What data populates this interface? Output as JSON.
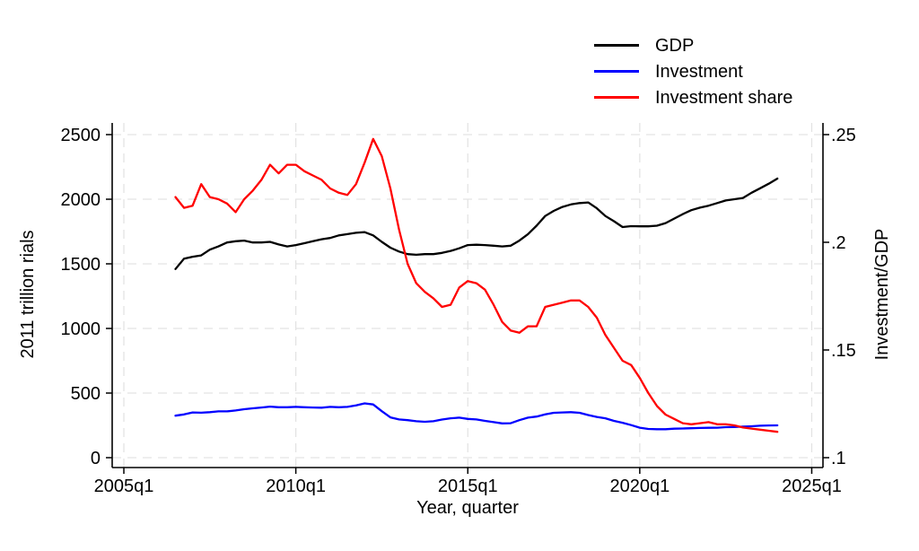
{
  "chart_data": {
    "type": "line",
    "title": "",
    "xlabel": "Year, quarter",
    "y_left": {
      "label": "2011 trillion rials",
      "ticks": [
        0,
        500,
        1000,
        1500,
        2000,
        2500
      ],
      "range": [
        0,
        2500
      ]
    },
    "y_right": {
      "label": "Investment/GDP",
      "ticks": [
        ".1",
        ".15",
        ".2",
        ".25"
      ],
      "tick_values": [
        0.1,
        0.15,
        0.2,
        0.25
      ],
      "range": [
        0.1,
        0.25
      ]
    },
    "x_axis": {
      "label": "Year, quarter",
      "ticks": [
        {
          "label": "2005q1",
          "q": 0
        },
        {
          "label": "2010q1",
          "q": 20
        },
        {
          "label": "2015q1",
          "q": 40
        },
        {
          "label": "2020q1",
          "q": 60
        },
        {
          "label": "2025q1",
          "q": 80
        }
      ]
    },
    "x_start_q": 6,
    "x": [
      "2006q3",
      "2006q4",
      "2007q1",
      "2007q2",
      "2007q3",
      "2007q4",
      "2008q1",
      "2008q2",
      "2008q3",
      "2008q4",
      "2009q1",
      "2009q2",
      "2009q3",
      "2009q4",
      "2010q1",
      "2010q2",
      "2010q3",
      "2010q4",
      "2011q1",
      "2011q2",
      "2011q3",
      "2011q4",
      "2012q1",
      "2012q2",
      "2012q3",
      "2012q4",
      "2013q1",
      "2013q2",
      "2013q3",
      "2013q4",
      "2014q1",
      "2014q2",
      "2014q3",
      "2014q4",
      "2015q1",
      "2015q2",
      "2015q3",
      "2015q4",
      "2016q1",
      "2016q2",
      "2016q3",
      "2016q4",
      "2017q1",
      "2017q2",
      "2017q3",
      "2017q4",
      "2018q1",
      "2018q2",
      "2018q3",
      "2018q4",
      "2019q1",
      "2019q2",
      "2019q3",
      "2019q4",
      "2020q1",
      "2020q2",
      "2020q3",
      "2020q4",
      "2021q1",
      "2021q2",
      "2021q3",
      "2021q4",
      "2022q1",
      "2022q2",
      "2022q3",
      "2022q4",
      "2023q1",
      "2023q2",
      "2023q3",
      "2023q4",
      "2024q1"
    ],
    "series": [
      {
        "name": "GDP",
        "color": "#000000",
        "axis": "left",
        "values": [
          1460,
          1540,
          1555,
          1565,
          1610,
          1635,
          1665,
          1675,
          1680,
          1665,
          1665,
          1670,
          1650,
          1635,
          1645,
          1660,
          1675,
          1690,
          1700,
          1720,
          1730,
          1740,
          1745,
          1720,
          1670,
          1625,
          1595,
          1575,
          1570,
          1575,
          1575,
          1585,
          1600,
          1620,
          1645,
          1648,
          1645,
          1640,
          1635,
          1640,
          1680,
          1730,
          1795,
          1870,
          1910,
          1940,
          1960,
          1970,
          1975,
          1930,
          1870,
          1830,
          1785,
          1792,
          1790,
          1790,
          1795,
          1815,
          1850,
          1885,
          1915,
          1935,
          1950,
          1970,
          1990,
          2000,
          2010,
          2050,
          2085,
          2120,
          2160
        ]
      },
      {
        "name": "Investment",
        "color": "#0000ff",
        "axis": "left",
        "values": [
          325,
          335,
          350,
          348,
          352,
          358,
          358,
          365,
          375,
          382,
          388,
          395,
          390,
          390,
          393,
          390,
          388,
          387,
          393,
          390,
          393,
          405,
          420,
          412,
          360,
          312,
          296,
          290,
          282,
          278,
          282,
          295,
          305,
          310,
          300,
          296,
          285,
          275,
          265,
          267,
          290,
          310,
          318,
          335,
          347,
          350,
          352,
          347,
          330,
          315,
          305,
          285,
          270,
          252,
          232,
          222,
          220,
          220,
          224,
          226,
          228,
          230,
          231,
          232,
          236,
          237,
          240,
          243,
          247,
          249,
          250
        ]
      },
      {
        "name": "Investment share",
        "color": "#ff0000",
        "axis": "right",
        "values": [
          0.221,
          0.216,
          0.217,
          0.227,
          0.221,
          0.22,
          0.218,
          0.214,
          0.22,
          0.224,
          0.229,
          0.236,
          0.232,
          0.236,
          0.236,
          0.233,
          0.231,
          0.229,
          0.225,
          0.223,
          0.222,
          0.227,
          0.237,
          0.248,
          0.24,
          0.225,
          0.206,
          0.19,
          0.181,
          0.177,
          0.174,
          0.17,
          0.171,
          0.179,
          0.182,
          0.181,
          0.178,
          0.171,
          0.163,
          0.159,
          0.158,
          0.161,
          0.161,
          0.17,
          0.171,
          0.172,
          0.173,
          0.173,
          0.17,
          0.165,
          0.157,
          0.151,
          0.145,
          0.143,
          0.137,
          0.13,
          0.124,
          0.12,
          0.118,
          0.116,
          0.1155,
          0.116,
          0.1165,
          0.1155,
          0.1155,
          0.115,
          0.114,
          0.1135,
          0.113,
          0.1125,
          0.112
        ]
      }
    ],
    "grid": "horizontal-left-ticks-and-vertical-x-ticks, light gray dashed",
    "legend_position": "top-right",
    "colors": {
      "grid": "#e3e3e3",
      "axis": "#000000",
      "background": "#ffffff"
    }
  },
  "legend": {
    "items": [
      {
        "label": "GDP"
      },
      {
        "label": "Investment"
      },
      {
        "label": "Investment share"
      }
    ]
  }
}
